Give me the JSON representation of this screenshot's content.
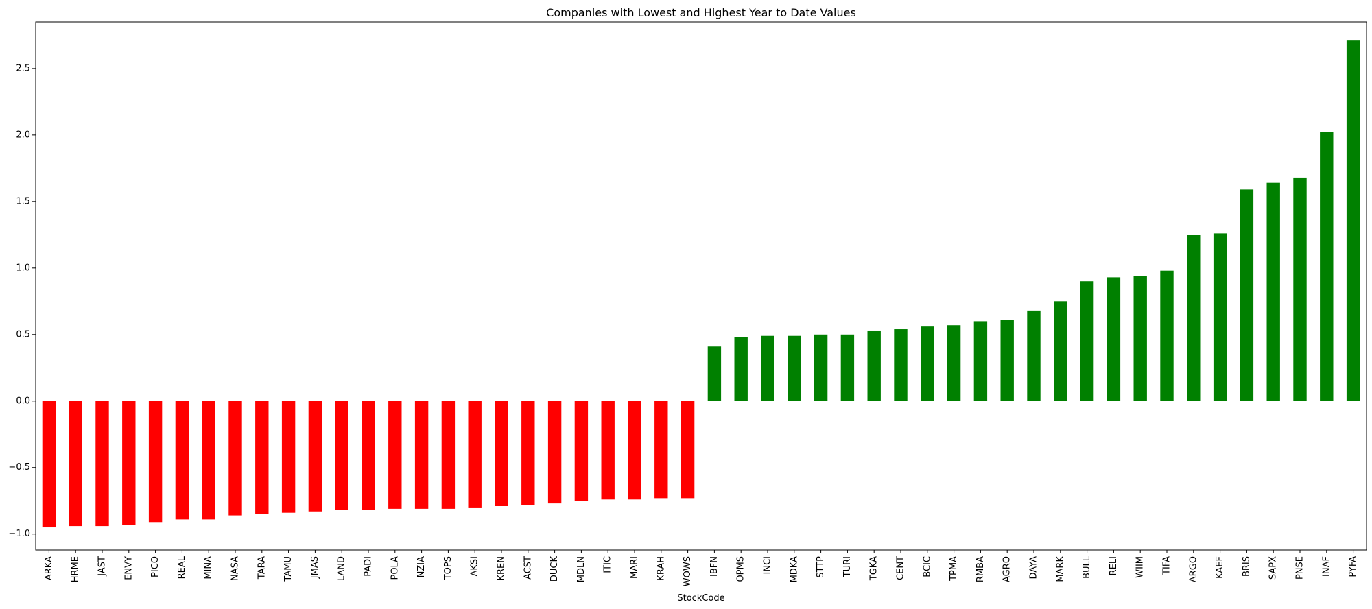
{
  "chart_data": {
    "type": "bar",
    "title": "Companies with Lowest and Highest Year to Date Values",
    "xlabel": "StockCode",
    "ylabel": "",
    "ylim": [
      -1.12,
      2.85
    ],
    "yticks": [
      -1.0,
      -0.5,
      0.0,
      0.5,
      1.0,
      1.5,
      2.0,
      2.5
    ],
    "ytick_labels": [
      "−1.0",
      "−0.5",
      "0.0",
      "0.5",
      "1.0",
      "1.5",
      "2.0",
      "2.5"
    ],
    "colors": {
      "negative": "#ff0000",
      "positive": "#008000"
    },
    "grid": false,
    "categories": [
      "ARKA",
      "HRME",
      "JAST",
      "ENVY",
      "PICO",
      "REAL",
      "MINA",
      "NASA",
      "TARA",
      "TAMU",
      "JMAS",
      "LAND",
      "PADI",
      "POLA",
      "NZIA",
      "TOPS",
      "AKSI",
      "KREN",
      "ACST",
      "DUCK",
      "MDLN",
      "ITIC",
      "MARI",
      "KRAH",
      "WOWS",
      "IBFN",
      "OPMS",
      "INCI",
      "MDKA",
      "STTP",
      "TURI",
      "TGKA",
      "CENT",
      "BCIC",
      "TPMA",
      "RMBA",
      "AGRO",
      "DAYA",
      "MARK",
      "BULL",
      "RELI",
      "WIIM",
      "TIFA",
      "ARGO",
      "KAEF",
      "BRIS",
      "SAPX",
      "PNSE",
      "INAF",
      "PYFA"
    ],
    "values": [
      -0.95,
      -0.94,
      -0.94,
      -0.93,
      -0.91,
      -0.89,
      -0.89,
      -0.86,
      -0.85,
      -0.84,
      -0.83,
      -0.82,
      -0.82,
      -0.81,
      -0.81,
      -0.81,
      -0.8,
      -0.79,
      -0.78,
      -0.77,
      -0.75,
      -0.74,
      -0.74,
      -0.73,
      -0.73,
      0.41,
      0.48,
      0.49,
      0.49,
      0.5,
      0.5,
      0.53,
      0.54,
      0.56,
      0.57,
      0.6,
      0.61,
      0.68,
      0.75,
      0.9,
      0.93,
      0.94,
      0.98,
      1.25,
      1.26,
      1.59,
      1.64,
      1.68,
      2.02,
      2.71
    ]
  }
}
